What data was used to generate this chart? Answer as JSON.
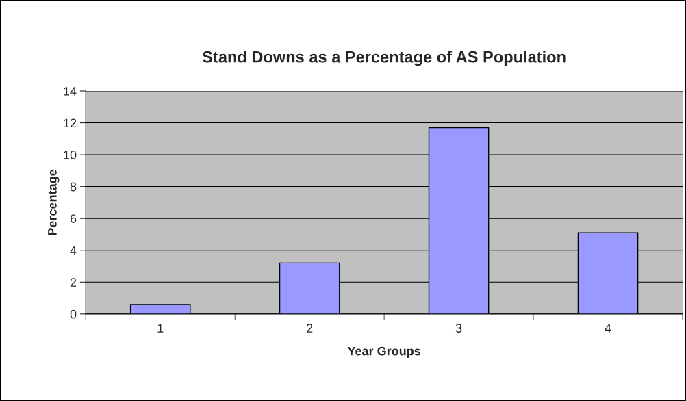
{
  "chart_data": {
    "type": "bar",
    "title": "Stand Downs as a Percentage of AS Population",
    "xlabel": "Year Groups",
    "ylabel": "Percentage",
    "categories": [
      "1",
      "2",
      "3",
      "4"
    ],
    "values": [
      0.6,
      3.2,
      11.7,
      5.1
    ],
    "color": "#9999ff",
    "ylim": [
      0,
      14
    ],
    "yticks": [
      0,
      2,
      4,
      6,
      8,
      10,
      12,
      14
    ],
    "grid": "y",
    "legend": false
  }
}
